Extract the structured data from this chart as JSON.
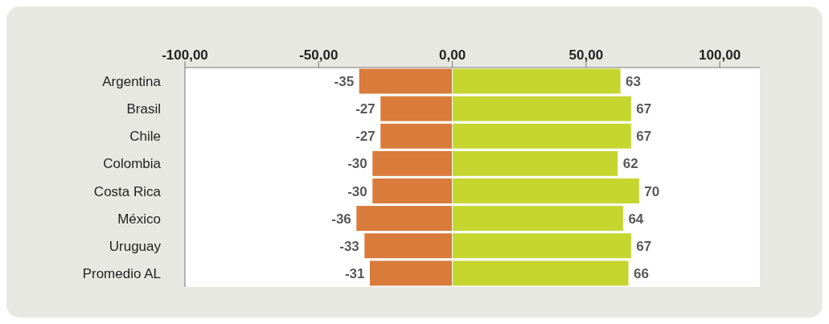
{
  "chart_data": {
    "type": "bar",
    "orientation": "horizontal",
    "stacked": true,
    "categories": [
      "Argentina",
      "Brasil",
      "Chile",
      "Colombia",
      "Costa Rica",
      "México",
      "Uruguay",
      "Promedio AL"
    ],
    "series": [
      {
        "color": "#d97b3a",
        "values": [
          -35,
          -27,
          -27,
          -30,
          -30,
          -36,
          -33,
          -31
        ]
      },
      {
        "color": "#c5d62f",
        "values": [
          63,
          67,
          67,
          62,
          70,
          64,
          67,
          66
        ]
      }
    ],
    "xlim": [
      -100,
      115
    ],
    "xticks": [
      {
        "value": -100,
        "label": "-100,00"
      },
      {
        "value": -50,
        "label": "-50,00"
      },
      {
        "value": 0,
        "label": "0,00"
      },
      {
        "value": 50,
        "label": "50,00"
      },
      {
        "value": 100,
        "label": "100,00"
      }
    ],
    "data_labels": true,
    "grid": false,
    "legend": false
  }
}
